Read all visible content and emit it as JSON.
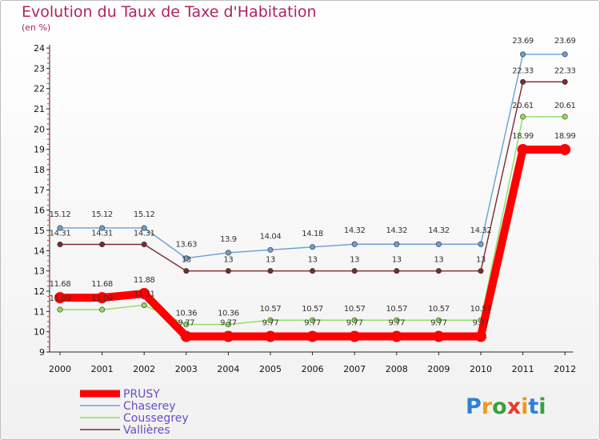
{
  "chart_data": {
    "type": "line",
    "title": "Evolution du Taux de Taxe d'Habitation",
    "unit_label": "(en %)",
    "x": [
      "2000",
      "2001",
      "2002",
      "2003",
      "2004",
      "2005",
      "2006",
      "2007",
      "2008",
      "2009",
      "2010",
      "2011",
      "2012"
    ],
    "ylim": [
      9,
      24
    ],
    "yticks": [
      9,
      10,
      11,
      12,
      13,
      14,
      15,
      16,
      17,
      18,
      19,
      20,
      21,
      22,
      23,
      24
    ],
    "grid": false,
    "legend_position": "bottom-left",
    "series": [
      {
        "name": "PRUSY",
        "color": "#ff0000",
        "values": [
          11.68,
          11.68,
          11.88,
          9.77,
          9.77,
          9.77,
          9.77,
          9.77,
          9.77,
          9.77,
          9.77,
          18.99,
          18.99
        ],
        "labels": [
          "11.68",
          "11.68",
          "11.88",
          "9.77",
          "9.77",
          "9.77",
          "9.77",
          "9.77",
          "9.77",
          "9.77",
          "9.77",
          "18.99",
          "18.99"
        ]
      },
      {
        "name": "Chaserey",
        "color": "#6a9fd6",
        "values": [
          15.12,
          15.12,
          15.12,
          13.63,
          13.9,
          14.04,
          14.18,
          14.32,
          14.32,
          14.32,
          14.32,
          23.69,
          23.69
        ],
        "labels": [
          "15.12",
          "15.12",
          "15.12",
          "13.63",
          "13.9",
          "14.04",
          "14.18",
          "14.32",
          "14.32",
          "14.32",
          "14.32",
          "23.69",
          "23.69"
        ]
      },
      {
        "name": "Coussegrey",
        "color": "#8ddc5c",
        "values": [
          11.09,
          11.09,
          11.31,
          10.36,
          10.36,
          10.57,
          10.57,
          10.57,
          10.57,
          10.57,
          10.57,
          20.61,
          20.61
        ],
        "labels": [
          "11.09",
          "11.09",
          "11.31",
          "10.36",
          "10.36",
          "10.57",
          "10.57",
          "10.57",
          "10.57",
          "10.57",
          "10.57",
          "20.61",
          "20.61"
        ]
      },
      {
        "name": "Vallières",
        "color": "#7a2a2e",
        "values": [
          14.31,
          14.31,
          14.31,
          13,
          13,
          13,
          13,
          13,
          13,
          13,
          13,
          22.33,
          22.33
        ],
        "labels": [
          "14.31",
          "14.31",
          "14.31",
          "13",
          "13",
          "13",
          "13",
          "13",
          "13",
          "13",
          "13",
          "22.33",
          "22.33"
        ]
      }
    ]
  },
  "brand": {
    "name": "Proxiti",
    "letters": [
      "P",
      "r",
      "o",
      "x",
      "i",
      "t",
      "i"
    ],
    "colors": [
      "#2f7fd8",
      "#f09a1a",
      "#3aa13a",
      "#e53c2a",
      "#f09a1a",
      "#2f7fd8",
      "#3aa13a"
    ]
  }
}
